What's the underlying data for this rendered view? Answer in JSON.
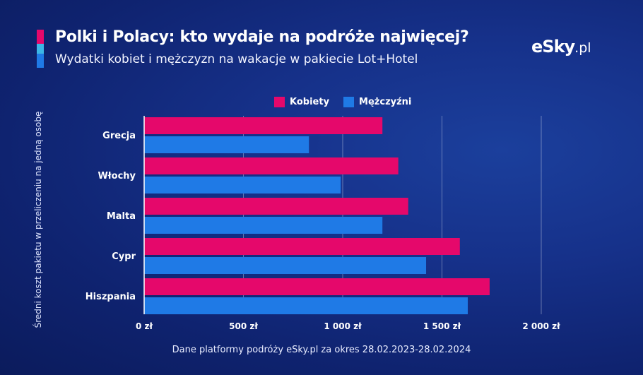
{
  "header": {
    "title": "Polki i Polacy: kto wydaje na podróże najwięcej?",
    "subtitle": "Wydatki kobiet i mężczyzn na wakacje w pakiecie Lot+Hotel"
  },
  "logo": {
    "main": "eSky",
    "suffix": ".pl"
  },
  "footer": {
    "note": "Dane platformy podróży eSky.pl za okres 28.02.2023-28.02.2024"
  },
  "colors": {
    "women": "#e5086b",
    "men": "#1f7ae6",
    "accent_light": "#3cb7e6",
    "background": "#102676"
  },
  "chart_data": {
    "type": "bar",
    "orientation": "horizontal",
    "title": "",
    "xlabel": "",
    "ylabel": "Średni koszt pakietu w przeliczeniu na jedną osobę",
    "categories": [
      "Grecja",
      "Włochy",
      "Malta",
      "Cypr",
      "Hiszpania"
    ],
    "series": [
      {
        "name": "Kobiety",
        "color": "#e5086b",
        "values": [
          1200,
          1280,
          1330,
          1590,
          1740
        ]
      },
      {
        "name": "Mężczyźni",
        "color": "#1f7ae6",
        "values": [
          830,
          990,
          1200,
          1420,
          1630
        ]
      }
    ],
    "xlim": [
      0,
      2000
    ],
    "xticks": [
      0,
      500,
      1000,
      1500,
      2000
    ],
    "xtick_labels": [
      "0 zł",
      "500 zł",
      "1 000 zł",
      "1 500 zł",
      "2 000 zł"
    ],
    "grid": true,
    "legend_position": "top"
  }
}
